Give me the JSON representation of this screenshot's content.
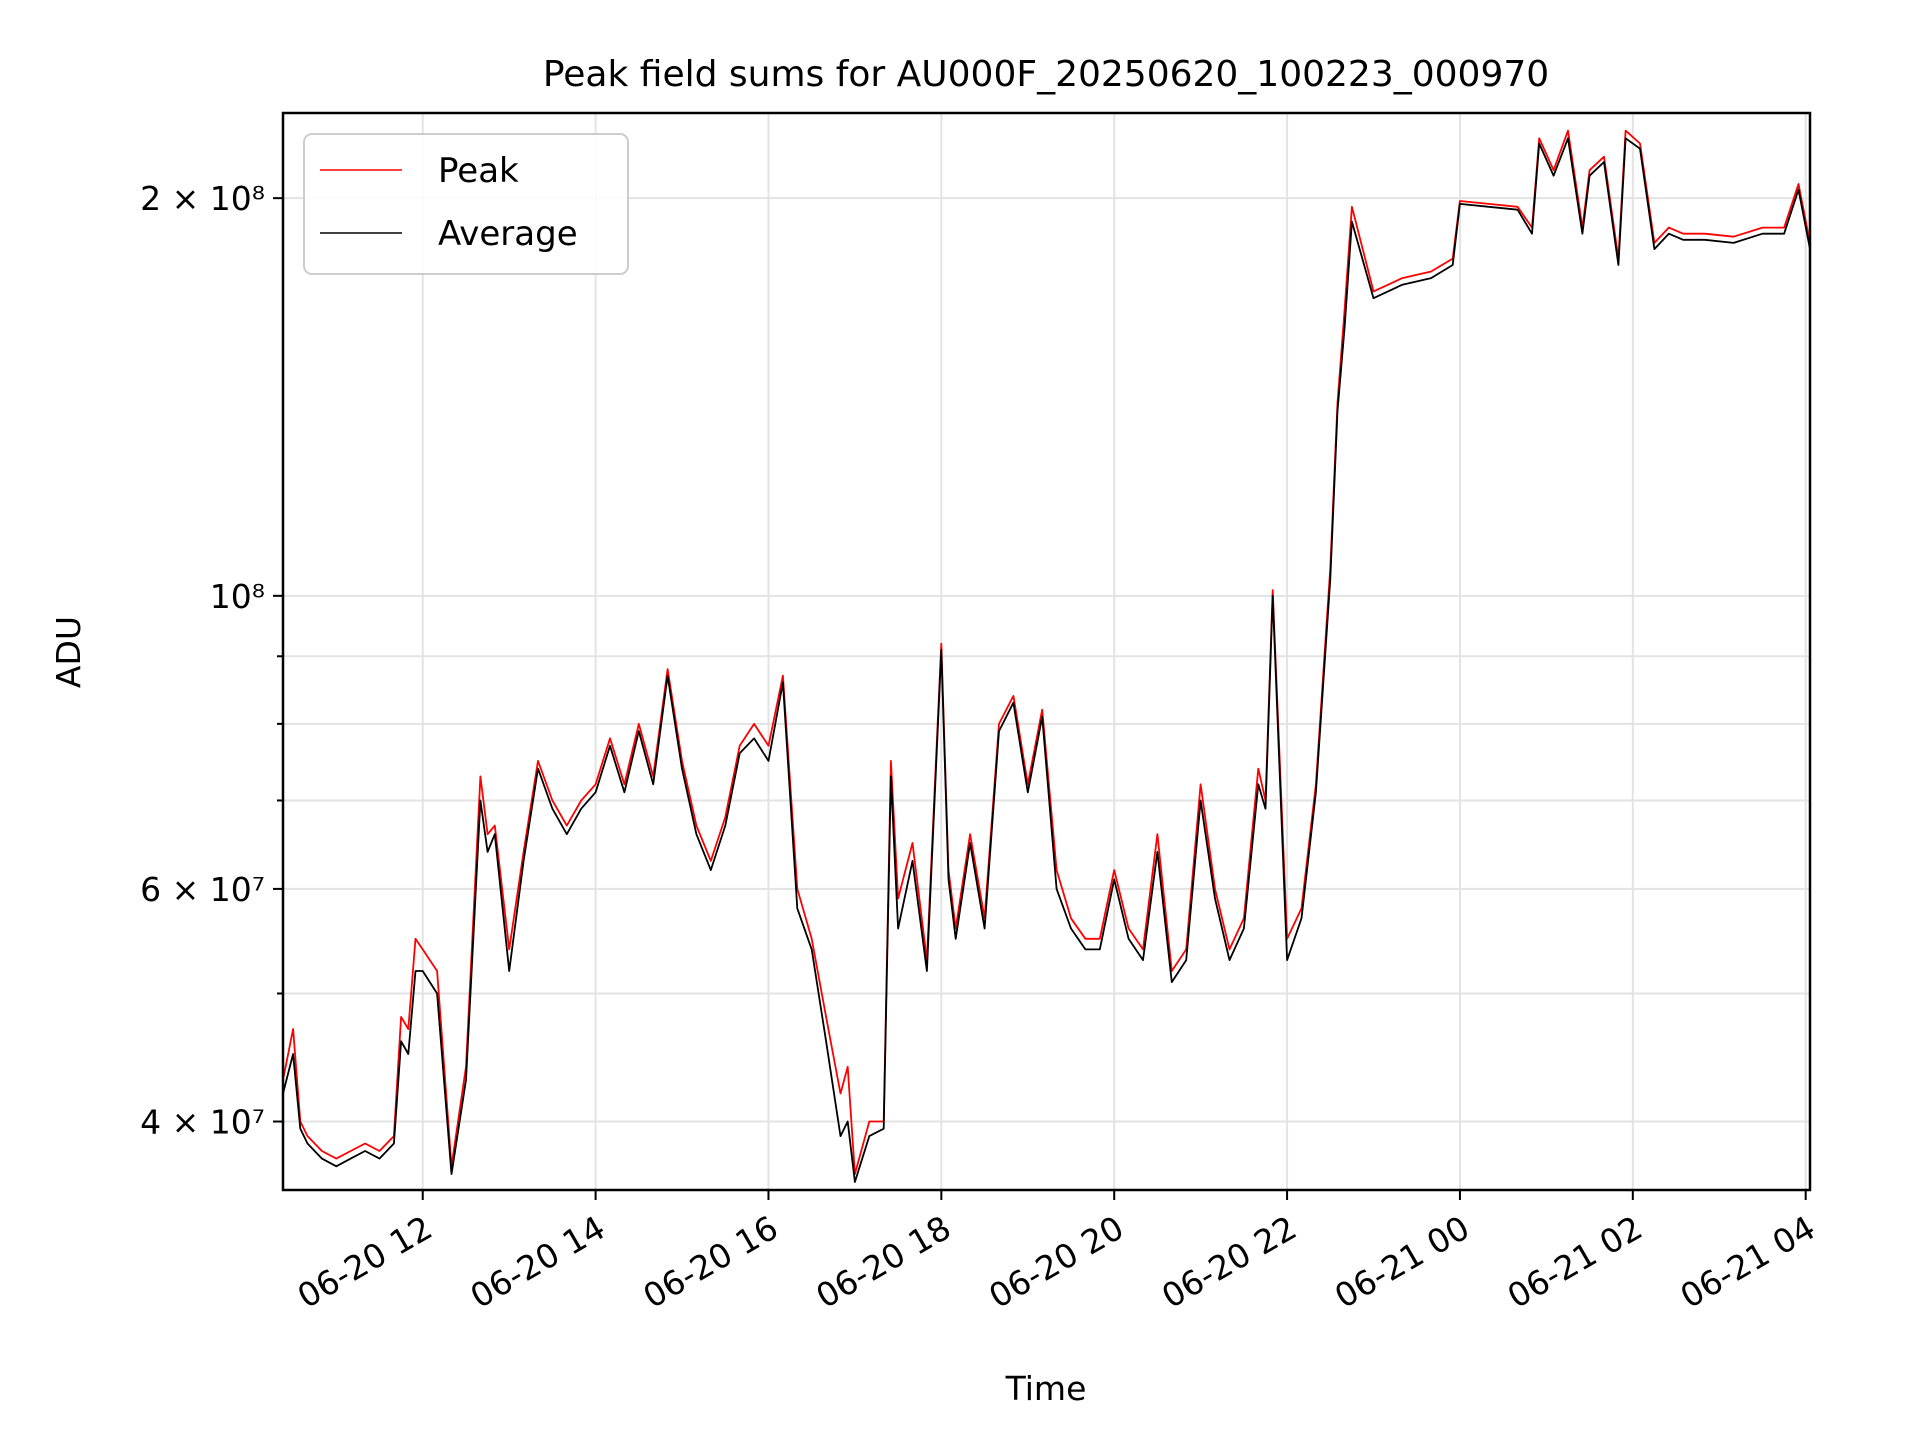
{
  "chart_data": {
    "type": "line",
    "title": "Peak field sums for AU000F_20250620_100223_000970",
    "xlabel": "Time",
    "ylabel": "ADU",
    "y_scale": "log",
    "ylim": [
      35500000,
      232000000
    ],
    "xlim": [
      "2025-06-20 10:23",
      "2025-06-21 04:03"
    ],
    "grid": true,
    "legend_position": "top-left",
    "x_ticks": [
      {
        "value": "2025-06-20 12:00",
        "label": "06-20 12"
      },
      {
        "value": "2025-06-20 14:00",
        "label": "06-20 14"
      },
      {
        "value": "2025-06-20 16:00",
        "label": "06-20 16"
      },
      {
        "value": "2025-06-20 18:00",
        "label": "06-20 18"
      },
      {
        "value": "2025-06-20 20:00",
        "label": "06-20 20"
      },
      {
        "value": "2025-06-20 22:00",
        "label": "06-20 22"
      },
      {
        "value": "2025-06-21 00:00",
        "label": "06-21 00"
      },
      {
        "value": "2025-06-21 02:00",
        "label": "06-21 02"
      },
      {
        "value": "2025-06-21 04:00",
        "label": "06-21 04"
      }
    ],
    "y_major_ticks": [
      {
        "value": 40000000,
        "label": "4 × 10⁷"
      },
      {
        "value": 60000000,
        "label": "6 × 10⁷"
      },
      {
        "value": 100000000,
        "label": "10⁸"
      },
      {
        "value": 200000000,
        "label": "2 × 10⁸"
      }
    ],
    "y_minor_ticks": [
      50000000,
      70000000,
      80000000,
      90000000
    ],
    "series": [
      {
        "name": "Peak",
        "color": "#ff0000",
        "x": [
          "2025-06-20 10:23",
          "2025-06-20 10:30",
          "2025-06-20 10:35",
          "2025-06-20 10:40",
          "2025-06-20 10:50",
          "2025-06-20 11:00",
          "2025-06-20 11:10",
          "2025-06-20 11:20",
          "2025-06-20 11:30",
          "2025-06-20 11:40",
          "2025-06-20 11:45",
          "2025-06-20 11:50",
          "2025-06-20 11:55",
          "2025-06-20 12:00",
          "2025-06-20 12:10",
          "2025-06-20 12:20",
          "2025-06-20 12:30",
          "2025-06-20 12:40",
          "2025-06-20 12:45",
          "2025-06-20 12:50",
          "2025-06-20 13:00",
          "2025-06-20 13:10",
          "2025-06-20 13:20",
          "2025-06-20 13:30",
          "2025-06-20 13:40",
          "2025-06-20 13:50",
          "2025-06-20 14:00",
          "2025-06-20 14:10",
          "2025-06-20 14:20",
          "2025-06-20 14:30",
          "2025-06-20 14:40",
          "2025-06-20 14:50",
          "2025-06-20 15:00",
          "2025-06-20 15:10",
          "2025-06-20 15:20",
          "2025-06-20 15:30",
          "2025-06-20 15:40",
          "2025-06-20 15:50",
          "2025-06-20 16:00",
          "2025-06-20 16:10",
          "2025-06-20 16:20",
          "2025-06-20 16:30",
          "2025-06-20 16:40",
          "2025-06-20 16:50",
          "2025-06-20 16:55",
          "2025-06-20 17:00",
          "2025-06-20 17:10",
          "2025-06-20 17:20",
          "2025-06-20 17:25",
          "2025-06-20 17:30",
          "2025-06-20 17:40",
          "2025-06-20 17:50",
          "2025-06-20 18:00",
          "2025-06-20 18:05",
          "2025-06-20 18:10",
          "2025-06-20 18:20",
          "2025-06-20 18:30",
          "2025-06-20 18:40",
          "2025-06-20 18:50",
          "2025-06-20 19:00",
          "2025-06-20 19:10",
          "2025-06-20 19:20",
          "2025-06-20 19:30",
          "2025-06-20 19:40",
          "2025-06-20 19:50",
          "2025-06-20 20:00",
          "2025-06-20 20:10",
          "2025-06-20 20:20",
          "2025-06-20 20:30",
          "2025-06-20 20:40",
          "2025-06-20 20:50",
          "2025-06-20 21:00",
          "2025-06-20 21:10",
          "2025-06-20 21:20",
          "2025-06-20 21:30",
          "2025-06-20 21:40",
          "2025-06-20 21:45",
          "2025-06-20 21:50",
          "2025-06-20 22:00",
          "2025-06-20 22:10",
          "2025-06-20 22:20",
          "2025-06-20 22:30",
          "2025-06-20 22:35",
          "2025-06-20 22:40",
          "2025-06-20 22:45",
          "2025-06-20 23:00",
          "2025-06-20 23:20",
          "2025-06-20 23:40",
          "2025-06-20 23:55",
          "2025-06-21 00:00",
          "2025-06-21 00:20",
          "2025-06-21 00:40",
          "2025-06-21 00:50",
          "2025-06-21 00:55",
          "2025-06-21 01:05",
          "2025-06-21 01:15",
          "2025-06-21 01:25",
          "2025-06-21 01:30",
          "2025-06-21 01:40",
          "2025-06-21 01:50",
          "2025-06-21 01:55",
          "2025-06-21 02:05",
          "2025-06-21 02:15",
          "2025-06-21 02:25",
          "2025-06-21 02:35",
          "2025-06-21 02:50",
          "2025-06-21 03:10",
          "2025-06-21 03:30",
          "2025-06-21 03:45",
          "2025-06-21 03:55",
          "2025-06-21 04:03"
        ],
        "y": [
          43000000,
          47000000,
          40000000,
          39000000,
          38000000,
          37500000,
          38000000,
          38500000,
          38000000,
          39000000,
          48000000,
          47000000,
          55000000,
          54000000,
          52000000,
          37000000,
          44000000,
          73000000,
          66000000,
          67000000,
          54000000,
          64000000,
          75000000,
          70000000,
          67000000,
          70000000,
          72000000,
          78000000,
          72000000,
          80000000,
          73000000,
          88000000,
          75000000,
          67000000,
          63000000,
          68000000,
          77000000,
          80000000,
          77000000,
          87000000,
          60000000,
          55000000,
          48000000,
          42000000,
          44000000,
          36500000,
          40000000,
          40000000,
          75000000,
          59000000,
          65000000,
          53000000,
          92000000,
          62000000,
          56000000,
          66000000,
          57000000,
          80000000,
          84000000,
          72000000,
          82000000,
          62000000,
          57000000,
          55000000,
          55000000,
          62000000,
          56000000,
          54000000,
          66000000,
          52000000,
          54000000,
          72000000,
          60000000,
          54000000,
          57000000,
          74000000,
          70000000,
          101000000,
          55000000,
          58000000,
          72000000,
          105000000,
          140000000,
          165000000,
          197000000,
          170000000,
          174000000,
          176000000,
          180000000,
          199000000,
          198000000,
          197000000,
          190000000,
          222000000,
          210000000,
          225000000,
          190000000,
          210000000,
          215000000,
          180000000,
          225000000,
          220000000,
          185000000,
          190000000,
          188000000,
          188000000,
          187000000,
          190000000,
          190000000,
          205000000,
          185000000
        ]
      },
      {
        "name": "Average",
        "color": "#000000",
        "x": [
          "2025-06-20 10:23",
          "2025-06-20 10:30",
          "2025-06-20 10:35",
          "2025-06-20 10:40",
          "2025-06-20 10:50",
          "2025-06-20 11:00",
          "2025-06-20 11:10",
          "2025-06-20 11:20",
          "2025-06-20 11:30",
          "2025-06-20 11:40",
          "2025-06-20 11:45",
          "2025-06-20 11:50",
          "2025-06-20 11:55",
          "2025-06-20 12:00",
          "2025-06-20 12:10",
          "2025-06-20 12:20",
          "2025-06-20 12:30",
          "2025-06-20 12:40",
          "2025-06-20 12:45",
          "2025-06-20 12:50",
          "2025-06-20 13:00",
          "2025-06-20 13:10",
          "2025-06-20 13:20",
          "2025-06-20 13:30",
          "2025-06-20 13:40",
          "2025-06-20 13:50",
          "2025-06-20 14:00",
          "2025-06-20 14:10",
          "2025-06-20 14:20",
          "2025-06-20 14:30",
          "2025-06-20 14:40",
          "2025-06-20 14:50",
          "2025-06-20 15:00",
          "2025-06-20 15:10",
          "2025-06-20 15:20",
          "2025-06-20 15:30",
          "2025-06-20 15:40",
          "2025-06-20 15:50",
          "2025-06-20 16:00",
          "2025-06-20 16:10",
          "2025-06-20 16:20",
          "2025-06-20 16:30",
          "2025-06-20 16:40",
          "2025-06-20 16:50",
          "2025-06-20 16:55",
          "2025-06-20 17:00",
          "2025-06-20 17:10",
          "2025-06-20 17:20",
          "2025-06-20 17:25",
          "2025-06-20 17:30",
          "2025-06-20 17:40",
          "2025-06-20 17:50",
          "2025-06-20 18:00",
          "2025-06-20 18:05",
          "2025-06-20 18:10",
          "2025-06-20 18:20",
          "2025-06-20 18:30",
          "2025-06-20 18:40",
          "2025-06-20 18:50",
          "2025-06-20 19:00",
          "2025-06-20 19:10",
          "2025-06-20 19:20",
          "2025-06-20 19:30",
          "2025-06-20 19:40",
          "2025-06-20 19:50",
          "2025-06-20 20:00",
          "2025-06-20 20:10",
          "2025-06-20 20:20",
          "2025-06-20 20:30",
          "2025-06-20 20:40",
          "2025-06-20 20:50",
          "2025-06-20 21:00",
          "2025-06-20 21:10",
          "2025-06-20 21:20",
          "2025-06-20 21:30",
          "2025-06-20 21:40",
          "2025-06-20 21:45",
          "2025-06-20 21:50",
          "2025-06-20 22:00",
          "2025-06-20 22:10",
          "2025-06-20 22:20",
          "2025-06-20 22:30",
          "2025-06-20 22:35",
          "2025-06-20 22:40",
          "2025-06-20 22:45",
          "2025-06-20 23:00",
          "2025-06-20 23:20",
          "2025-06-20 23:40",
          "2025-06-20 23:55",
          "2025-06-21 00:00",
          "2025-06-21 00:20",
          "2025-06-21 00:40",
          "2025-06-21 00:50",
          "2025-06-21 00:55",
          "2025-06-21 01:05",
          "2025-06-21 01:15",
          "2025-06-21 01:25",
          "2025-06-21 01:30",
          "2025-06-21 01:40",
          "2025-06-21 01:50",
          "2025-06-21 01:55",
          "2025-06-21 02:05",
          "2025-06-21 02:15",
          "2025-06-21 02:25",
          "2025-06-21 02:35",
          "2025-06-21 02:50",
          "2025-06-21 03:10",
          "2025-06-21 03:30",
          "2025-06-21 03:45",
          "2025-06-21 03:55",
          "2025-06-21 04:03"
        ],
        "y": [
          42000000,
          45000000,
          39500000,
          38500000,
          37500000,
          37000000,
          37500000,
          38000000,
          37500000,
          38500000,
          46000000,
          45000000,
          52000000,
          52000000,
          50000000,
          36500000,
          43000000,
          70000000,
          64000000,
          66000000,
          52000000,
          63000000,
          74000000,
          69000000,
          66000000,
          69000000,
          71000000,
          77000000,
          71000000,
          79000000,
          72000000,
          87000000,
          74000000,
          66000000,
          62000000,
          67000000,
          76000000,
          78000000,
          75000000,
          86000000,
          58000000,
          54000000,
          46000000,
          39000000,
          40000000,
          36000000,
          39000000,
          39500000,
          73000000,
          56000000,
          63000000,
          52000000,
          91000000,
          61000000,
          55000000,
          65000000,
          56000000,
          79000000,
          83000000,
          71000000,
          81000000,
          60000000,
          56000000,
          54000000,
          54000000,
          61000000,
          55000000,
          53000000,
          64000000,
          51000000,
          53000000,
          70000000,
          59000000,
          53000000,
          56000000,
          72000000,
          69000000,
          100000000,
          53000000,
          57000000,
          71000000,
          103000000,
          138000000,
          160000000,
          192000000,
          168000000,
          172000000,
          174000000,
          178000000,
          198000000,
          197000000,
          196000000,
          188000000,
          220000000,
          208000000,
          222000000,
          188000000,
          208000000,
          213000000,
          178000000,
          222000000,
          218000000,
          183000000,
          188000000,
          186000000,
          186000000,
          185000000,
          188000000,
          188000000,
          203000000,
          183000000
        ]
      }
    ]
  }
}
